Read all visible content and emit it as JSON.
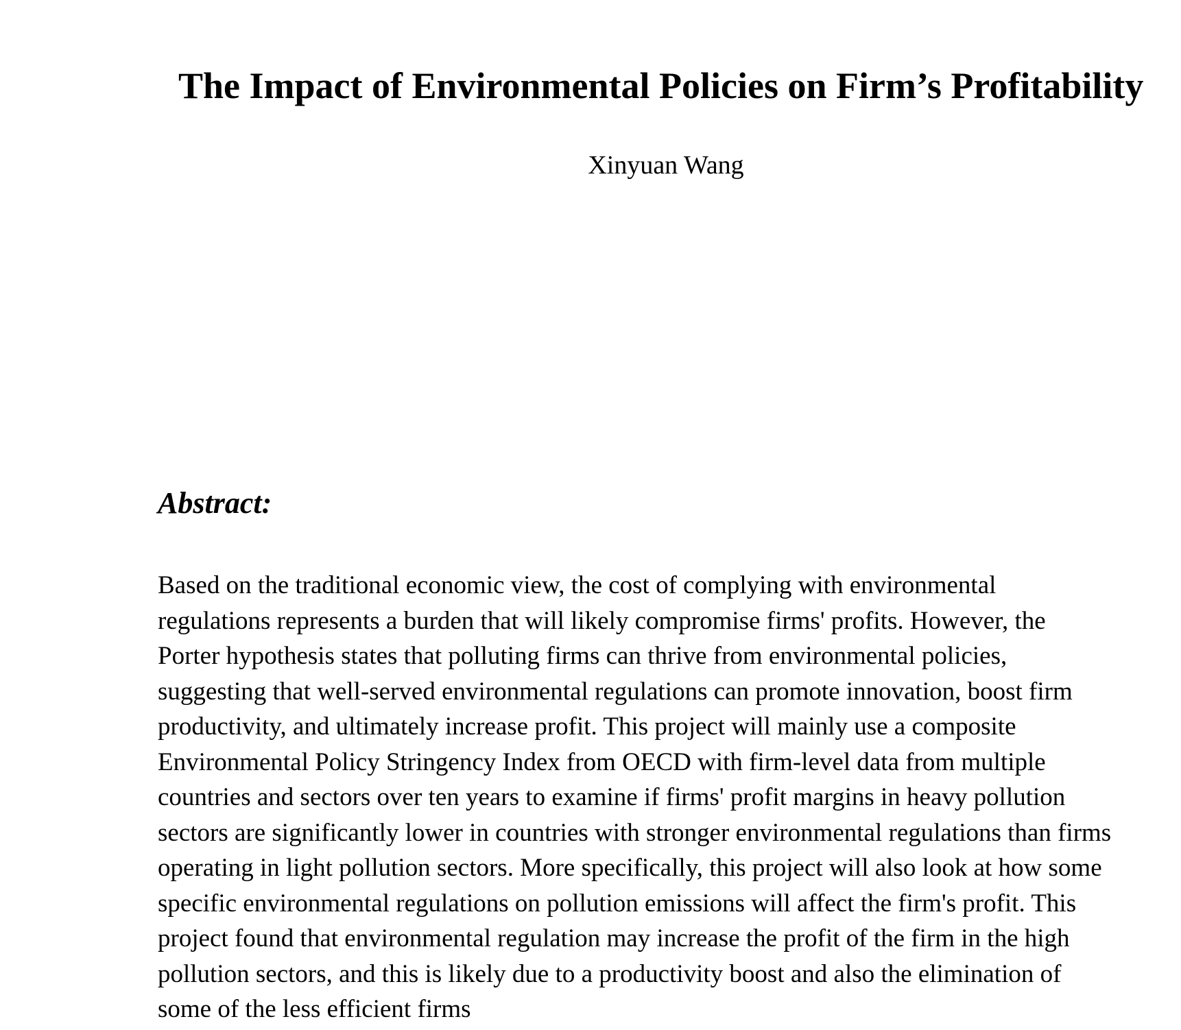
{
  "paper": {
    "title": "The Impact of Environmental Policies on Firm’s Profitability",
    "author": "Xinyuan Wang",
    "abstract_heading": "Abstract:",
    "abstract_lines": [
      "Based on the traditional economic view, the cost of complying with environmental",
      "regulations represents a burden that will likely compromise firms' profits. However, the",
      "Porter hypothesis states that polluting firms can thrive from environmental policies,",
      "suggesting that well-served environmental regulations can promote innovation, boost firm",
      "productivity, and ultimately increase profit. This project will mainly use a composite",
      "Environmental Policy Stringency Index from OECD with firm-level data from multiple",
      "countries and sectors over ten years to examine if firms' profit margins in heavy pollution",
      "sectors are significantly lower in countries with stronger environmental regulations than firms",
      "operating in light pollution sectors. More specifically, this project will also look at how some",
      "specific environmental regulations on pollution emissions will affect the firm's profit. This",
      "project found that environmental regulation may increase the profit of the firm in the high",
      "pollution sectors, and this is likely due to a productivity boost and also the elimination of",
      "some of the less efficient firms"
    ]
  }
}
